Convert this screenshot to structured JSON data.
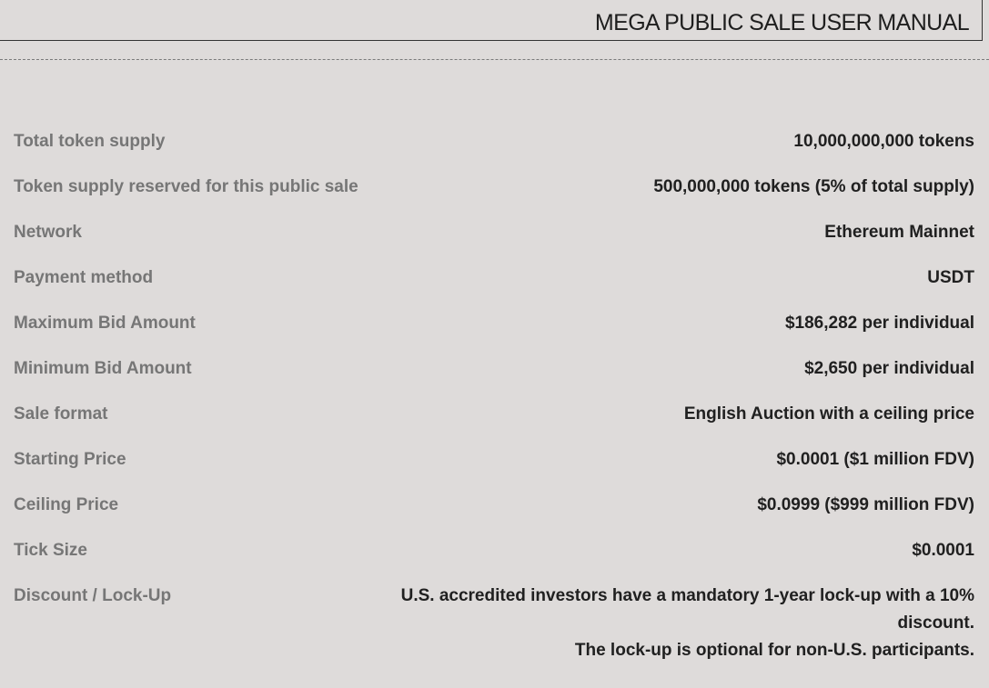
{
  "header": {
    "title": "MEGA PUBLIC SALE USER MANUAL"
  },
  "rows": [
    {
      "label": "Total token supply",
      "value": "10,000,000,000 tokens"
    },
    {
      "label": "Token supply reserved for this public sale",
      "value": "500,000,000 tokens (5% of total supply)"
    },
    {
      "label": "Network",
      "value": "Ethereum Mainnet"
    },
    {
      "label": "Payment method",
      "value": "USDT"
    },
    {
      "label": "Maximum Bid Amount",
      "value": "$186,282 per individual"
    },
    {
      "label": "Minimum Bid Amount",
      "value": "$2,650 per individual"
    },
    {
      "label": "Sale format",
      "value": "English Auction with a ceiling price"
    },
    {
      "label": "Starting Price",
      "value": "$0.0001 ($1 million FDV)"
    },
    {
      "label": "Ceiling Price",
      "value": "$0.0999 ($999 million FDV)"
    },
    {
      "label": "Tick Size",
      "value": "$0.0001"
    },
    {
      "label": "Discount / Lock-Up",
      "value_line1": "U.S. accredited investors have a mandatory 1-year lock-up with a 10% discount.",
      "value_line2": "The lock-up is optional for non-U.S. participants."
    }
  ]
}
